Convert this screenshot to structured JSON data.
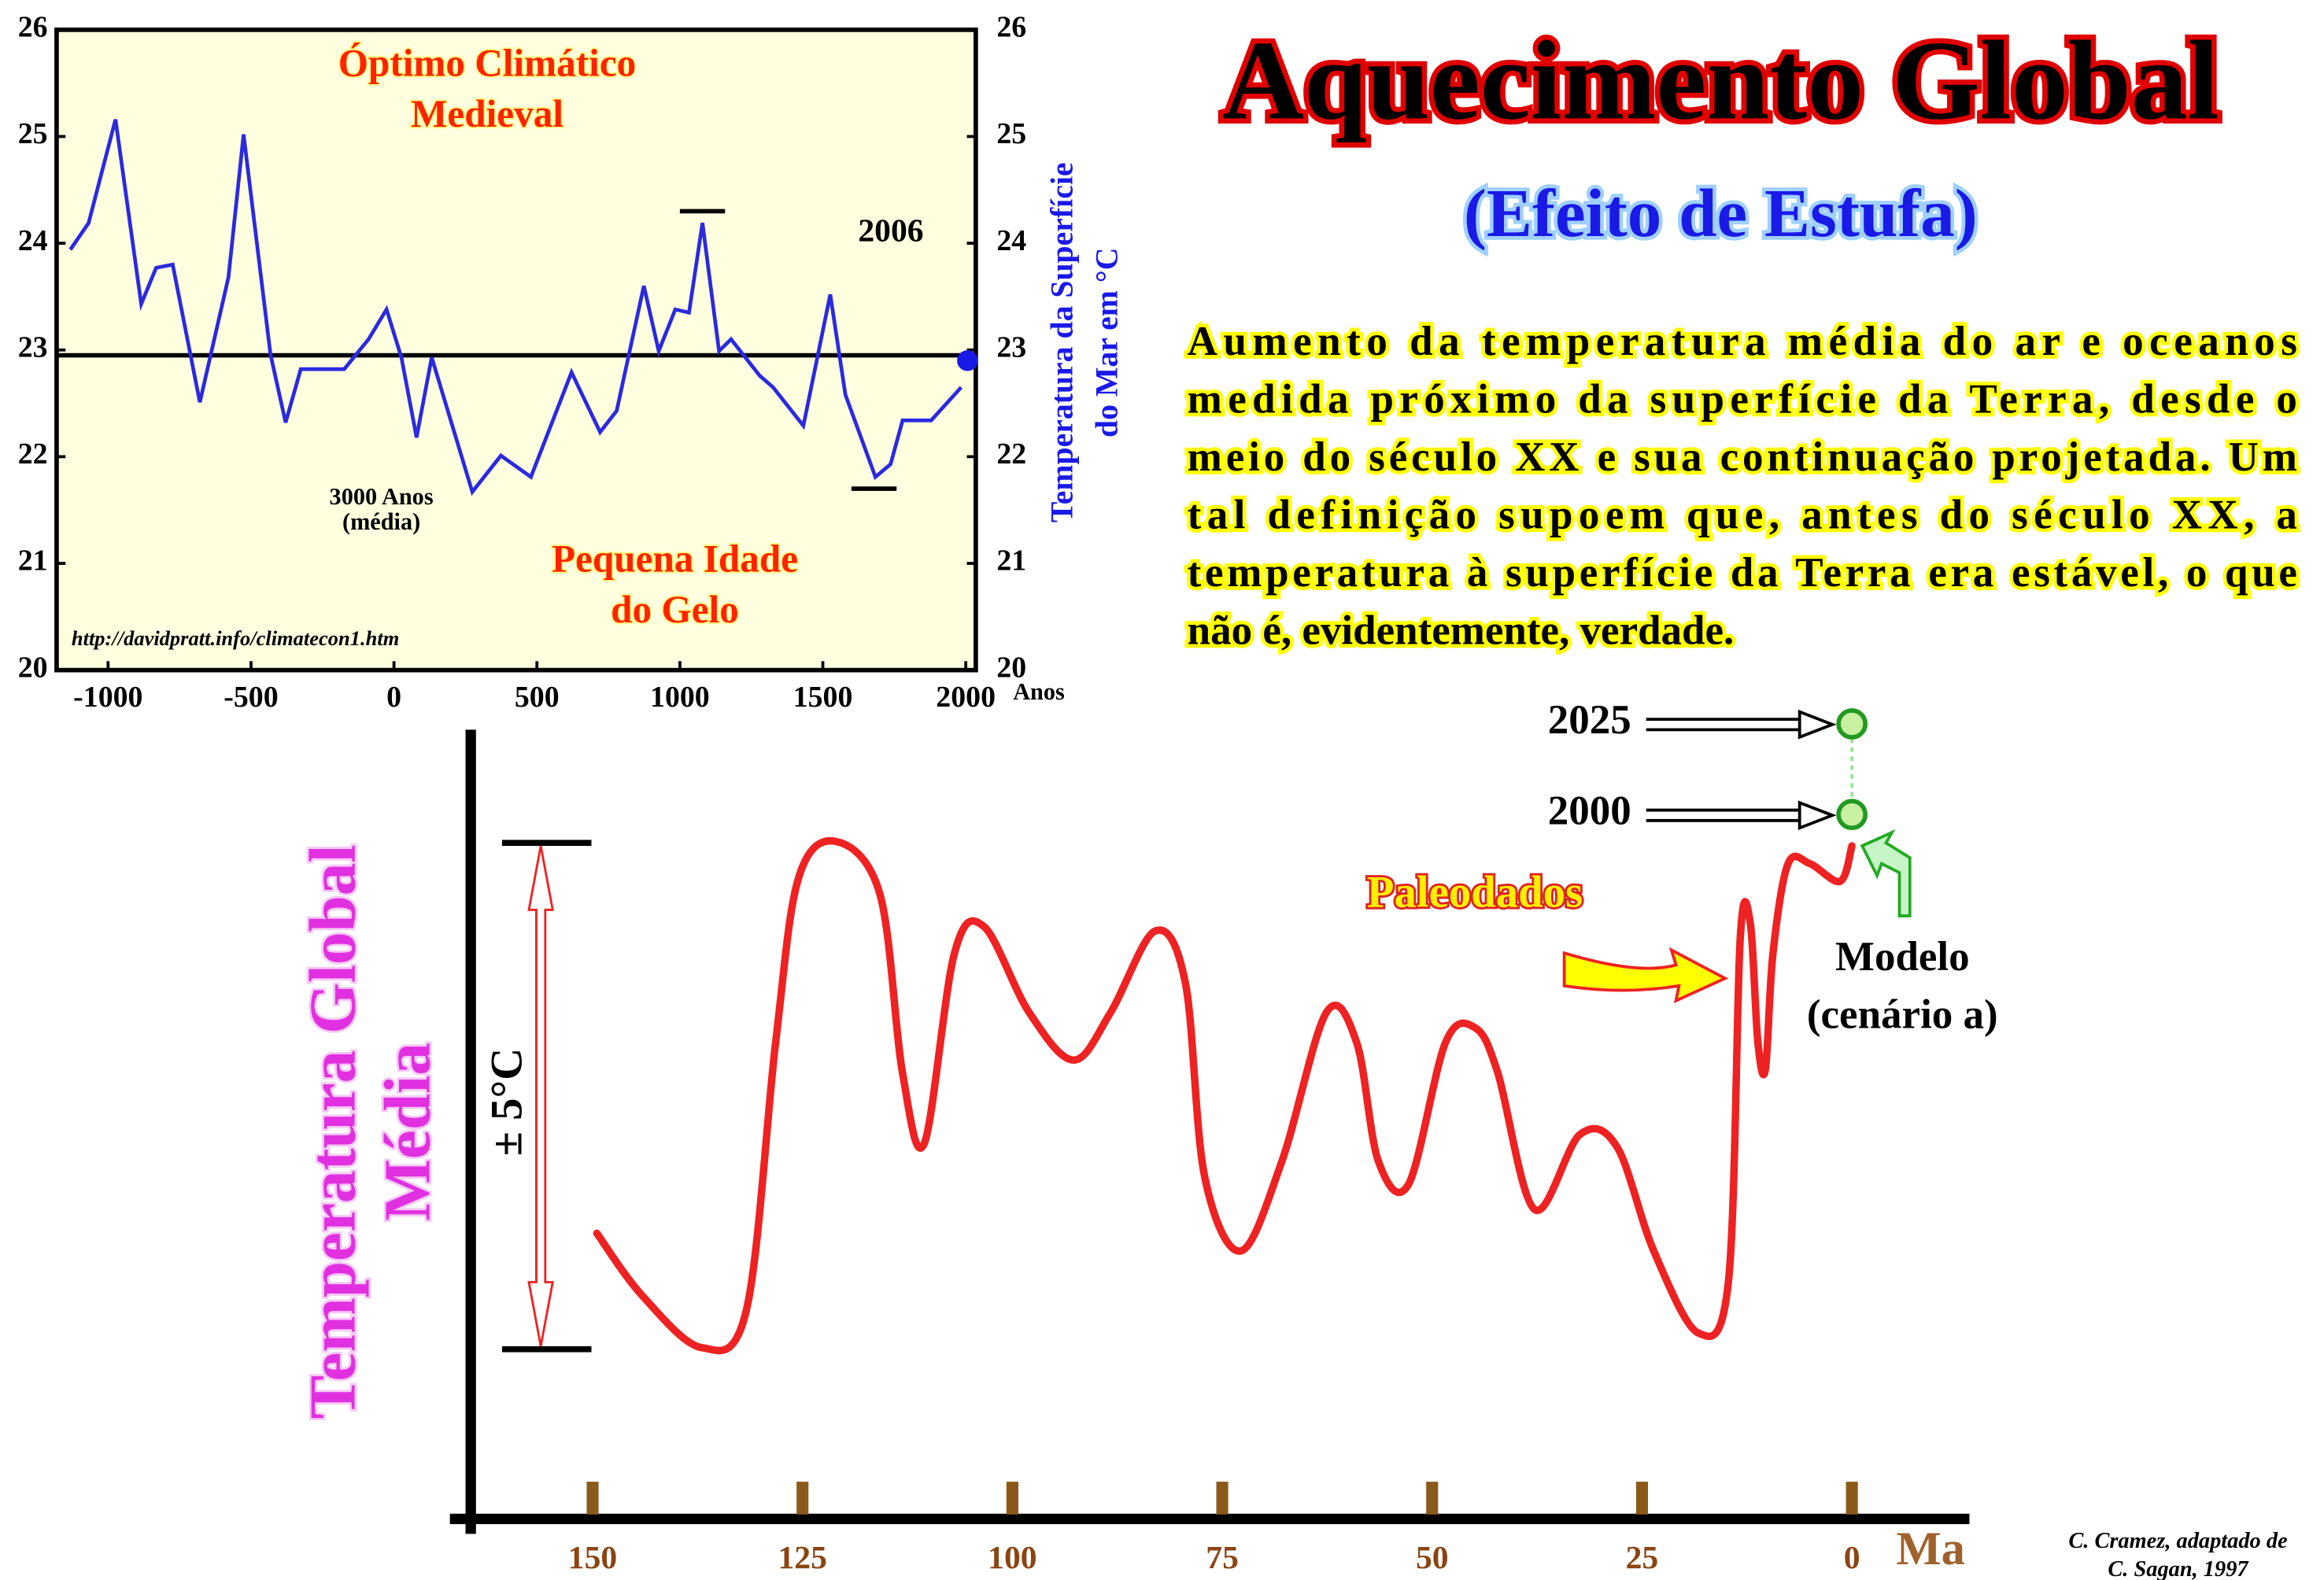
{
  "title": "Aquecimento Global",
  "subtitle": "(Efeito de Estufa)",
  "paragraph": [
    "Aumento da temperatura média do ar e oceanos",
    "medida próximo da superfície da Terra, desde o",
    "meio do século XX e sua continuação projetada. Um",
    "tal definição supoem que, antes do século XX, a",
    "temperatura à superfície da Terra era estável, o que",
    "não é, evidentemente, verdade."
  ],
  "credit": [
    "C. Cramez, adaptado de",
    "C. Sagan, 1997"
  ],
  "chart_data": [
    {
      "type": "line",
      "background": "#ffffe0",
      "color": "#2a2ae0",
      "x": [
        -1132,
        -1068,
        -974,
        -884,
        -832,
        -774,
        -679,
        -579,
        -526,
        -432,
        -379,
        -326,
        -174,
        -89,
        -26,
        26,
        79,
        132,
        274,
        374,
        479,
        621,
        721,
        779,
        874,
        926,
        984,
        1032,
        1079,
        1137,
        1179,
        1279,
        1326,
        1432,
        1526,
        1579,
        1684,
        1737,
        1779,
        1879,
        1984
      ],
      "values": [
        23.94,
        24.19,
        25.16,
        23.43,
        23.77,
        23.8,
        22.51,
        23.68,
        25.02,
        22.96,
        22.32,
        22.82,
        22.82,
        23.1,
        23.38,
        22.93,
        22.18,
        22.93,
        21.67,
        22.01,
        21.81,
        22.79,
        22.23,
        22.43,
        23.6,
        22.99,
        23.38,
        23.35,
        24.19,
        22.99,
        23.1,
        22.76,
        22.65,
        22.29,
        23.52,
        22.58,
        21.81,
        21.93,
        22.34,
        22.34,
        22.65
      ],
      "xlim": [
        -1180,
        2035
      ],
      "ylim": [
        20,
        26
      ],
      "xticks": [
        -1000,
        -500,
        0,
        500,
        1000,
        1500,
        2000
      ],
      "yticks": [
        20,
        21,
        22,
        23,
        24,
        25,
        26
      ],
      "y2lim": [
        20,
        26
      ],
      "y2ticks": [
        20,
        21,
        22,
        23,
        24,
        25,
        26
      ],
      "xlabel": "Anos",
      "y2label": [
        "Temperatura da Superfície",
        "do Mar em °C"
      ],
      "reference_line": {
        "value": 22.95,
        "label": [
          "3000 Anos",
          "(média)"
        ]
      },
      "annotations": [
        {
          "label": [
            "Óptimo Climático",
            "Medieval"
          ],
          "value": 24.3,
          "x": [
            1000,
            1158
          ]
        },
        {
          "label": [
            "Pequena Idade",
            "do Gelo"
          ],
          "value": 21.7,
          "x": [
            1600,
            1758
          ]
        }
      ],
      "point": {
        "label": "2006",
        "x": 2006,
        "value": 22.9
      },
      "url": "http://davidpratt.info/climatecon1.htm"
    },
    {
      "type": "line",
      "xlim": [
        167,
        -14
      ],
      "ylim": [
        -8.5,
        7.5
      ],
      "xticks": [
        150,
        125,
        100,
        75,
        50,
        25,
        0
      ],
      "xlabel": "Ma",
      "ylabel": [
        "Temperatura Global",
        "Média"
      ],
      "range_bar": {
        "label": "± 5°C",
        "values": [
          5,
          -5
        ]
      },
      "series": [
        {
          "name": "Paleodados",
          "color": "#ee2222",
          "x": [
            149.5,
            144.1,
            137,
            131.7,
            128.2,
            125.5,
            121.1,
            115.8,
            113.1,
            110.5,
            106.9,
            103.4,
            98,
            92.7,
            88.3,
            83,
            79.4,
            77.1,
            72.8,
            67.9,
            62.6,
            59,
            56.4,
            52.8,
            48.4,
            44.9,
            42.2,
            37.8,
            32.4,
            28,
            23.6,
            18.3,
            14.7,
            13.3,
            12.1,
            11.2,
            10.3,
            9.4,
            7.6,
            5,
            1.4,
            0
          ],
          "values": [
            -2.71,
            -3.94,
            -4.97,
            -4.24,
            1.06,
            4.29,
            5.03,
            4,
            0.47,
            -0.94,
            2.82,
            3.35,
            1.65,
            0.71,
            1.65,
            3.26,
            2.24,
            -1.59,
            -3.06,
            -1.29,
            1.65,
            1.06,
            -1.29,
            -1.74,
            1.06,
            1.35,
            0.47,
            -2.24,
            -0.76,
            -1,
            -3.06,
            -4.68,
            -3.65,
            3.12,
            3.41,
            1.06,
            0.53,
            2.82,
            4.59,
            4.59,
            4.24,
            4.94
          ]
        },
        {
          "name": "Modelo",
          "scenario": "(cenário a)",
          "color": "#229922",
          "x": [
            0,
            0
          ],
          "values": [
            5.56,
            7.35
          ],
          "point_labels": [
            "2000",
            "2025"
          ]
        }
      ]
    }
  ]
}
